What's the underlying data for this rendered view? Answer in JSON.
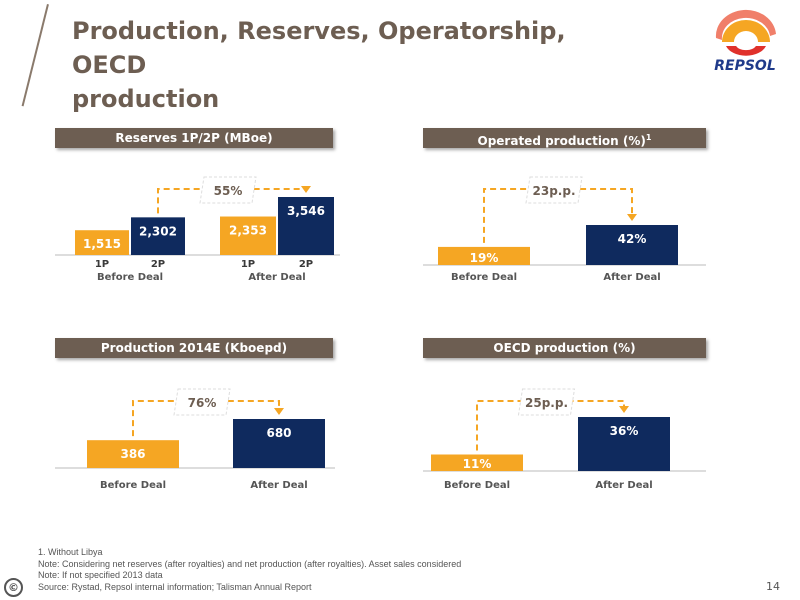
{
  "title_line1": "Production, Reserves, Operatorship, OECD",
  "title_line2": "production",
  "logo_text": "REPSOL",
  "colors": {
    "orange": "#f5a623",
    "navy": "#0f2a5e",
    "brown": "#6d5e52",
    "dashed": "#f5a623"
  },
  "panels": [
    {
      "header": "Reserves  1P/2P (MBoe)",
      "header_sup": "",
      "change_label": "55%",
      "groups": [
        {
          "label": "Before Deal",
          "bars": [
            {
              "sub": "1P",
              "value_label": "1,515",
              "value": 1515,
              "color": "orange"
            },
            {
              "sub": "2P",
              "value_label": "2,302",
              "value": 2302,
              "color": "navy"
            }
          ]
        },
        {
          "label": "After Deal",
          "bars": [
            {
              "sub": "1P",
              "value_label": "2,353",
              "value": 2353,
              "color": "orange"
            },
            {
              "sub": "2P",
              "value_label": "3,546",
              "value": 3546,
              "color": "navy"
            }
          ]
        }
      ]
    },
    {
      "header": "Operated production (%)",
      "header_sup": "1",
      "change_label": "23p.p.",
      "groups": [
        {
          "label": "Before Deal",
          "bars": [
            {
              "sub": "",
              "value_label": "19%",
              "value": 19,
              "color": "orange"
            }
          ]
        },
        {
          "label": "After Deal",
          "bars": [
            {
              "sub": "",
              "value_label": "42%",
              "value": 42,
              "color": "navy"
            }
          ]
        }
      ]
    },
    {
      "header": "Production 2014E (Kboepd)",
      "header_sup": "",
      "change_label": "76%",
      "groups": [
        {
          "label": "Before Deal",
          "bars": [
            {
              "sub": "",
              "value_label": "386",
              "value": 386,
              "color": "orange"
            }
          ]
        },
        {
          "label": "After Deal",
          "bars": [
            {
              "sub": "",
              "value_label": "680",
              "value": 680,
              "color": "navy"
            }
          ]
        }
      ]
    },
    {
      "header": "OECD production (%)",
      "header_sup": "",
      "change_label": "25p.p.",
      "groups": [
        {
          "label": "Before Deal",
          "bars": [
            {
              "sub": "",
              "value_label": "11%",
              "value": 11,
              "color": "orange"
            }
          ]
        },
        {
          "label": "After Deal",
          "bars": [
            {
              "sub": "",
              "value_label": "36%",
              "value": 36,
              "color": "navy"
            }
          ]
        }
      ]
    }
  ],
  "chart_data": [
    {
      "type": "bar",
      "title": "Reserves  1P/2P (MBoe)",
      "categories": [
        "Before Deal 1P",
        "Before Deal 2P",
        "After Deal 1P",
        "After Deal 2P"
      ],
      "values": [
        1515,
        2302,
        2353,
        3546
      ],
      "annotations": [
        "55%"
      ]
    },
    {
      "type": "bar",
      "title": "Operated production (%)",
      "categories": [
        "Before Deal",
        "After Deal"
      ],
      "values": [
        19,
        42
      ],
      "annotations": [
        "23p.p."
      ]
    },
    {
      "type": "bar",
      "title": "Production 2014E (Kboepd)",
      "categories": [
        "Before Deal",
        "After Deal"
      ],
      "values": [
        386,
        680
      ],
      "annotations": [
        "76%"
      ]
    },
    {
      "type": "bar",
      "title": "OECD production (%)",
      "categories": [
        "Before Deal",
        "After Deal"
      ],
      "values": [
        11,
        36
      ],
      "annotations": [
        "25p.p."
      ]
    }
  ],
  "footnotes": [
    "1. Without Libya",
    "Note: Considering net reserves (after royalties) and net production (after royalties). Asset sales considered",
    "Note: If not specified 2013 data",
    "Source: Rystad, Repsol internal information; Talisman Annual Report"
  ],
  "copyright_symbol": "©",
  "page_number": "14"
}
